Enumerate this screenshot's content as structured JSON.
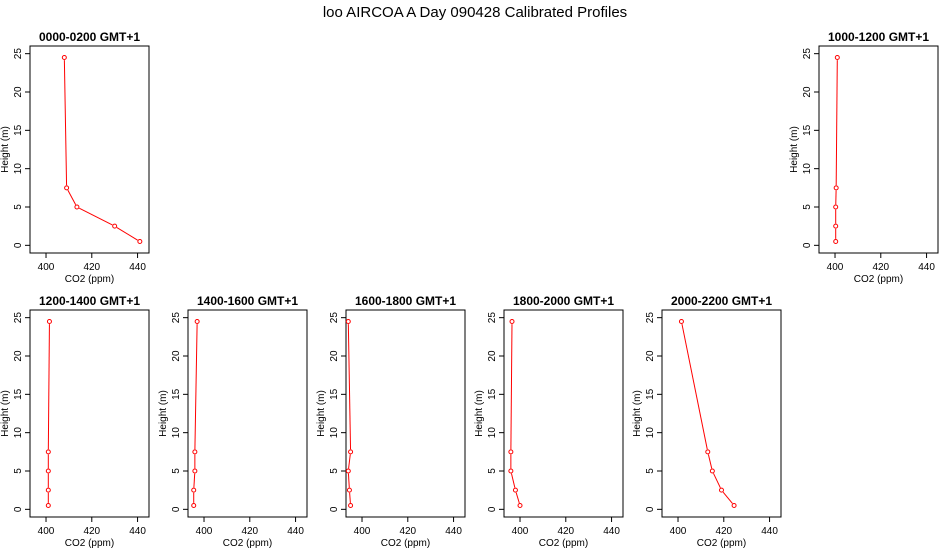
{
  "figure": {
    "title": "loo AIRCOA A  Day 090428  Calibrated Profiles"
  },
  "colors": {
    "series": "#ff0000",
    "axis": "#000000",
    "background": "#ffffff"
  },
  "chart_data": [
    {
      "type": "line",
      "title": "0000-0200 GMT+1",
      "xlabel": "CO2 (ppm)",
      "ylabel": "Height (m)",
      "xlim": [
        393,
        445
      ],
      "ylim": [
        -1,
        26
      ],
      "xticks": [
        400,
        420,
        440
      ],
      "yticks": [
        0,
        5,
        10,
        15,
        20,
        25
      ],
      "grid": false,
      "series": [
        {
          "x": [
            441,
            430,
            413.5,
            409,
            408
          ],
          "y": [
            0.5,
            2.5,
            5,
            7.5,
            24.5
          ]
        }
      ]
    },
    {
      "type": "line",
      "title": "1000-1200 GMT+1",
      "xlabel": "CO2 (ppm)",
      "ylabel": "Height (m)",
      "xlim": [
        393,
        445
      ],
      "ylim": [
        -1,
        26
      ],
      "xticks": [
        400,
        420,
        440
      ],
      "yticks": [
        0,
        5,
        10,
        15,
        20,
        25
      ],
      "grid": false,
      "series": [
        {
          "x": [
            400.3,
            400.3,
            400.3,
            400.5,
            401
          ],
          "y": [
            0.5,
            2.5,
            5,
            7.5,
            24.5
          ]
        }
      ]
    },
    {
      "type": "line",
      "title": "1200-1400 GMT+1",
      "xlabel": "CO2 (ppm)",
      "ylabel": "Height (m)",
      "xlim": [
        393,
        445
      ],
      "ylim": [
        -1,
        26
      ],
      "xticks": [
        400,
        420,
        440
      ],
      "yticks": [
        0,
        5,
        10,
        15,
        20,
        25
      ],
      "grid": false,
      "series": [
        {
          "x": [
            401,
            401,
            401,
            401,
            401.5
          ],
          "y": [
            0.5,
            2.5,
            5,
            7.5,
            24.5
          ]
        }
      ]
    },
    {
      "type": "line",
      "title": "1400-1600 GMT+1",
      "xlabel": "CO2 (ppm)",
      "ylabel": "Height (m)",
      "xlim": [
        393,
        445
      ],
      "ylim": [
        -1,
        26
      ],
      "xticks": [
        400,
        420,
        440
      ],
      "yticks": [
        0,
        5,
        10,
        15,
        20,
        25
      ],
      "grid": false,
      "series": [
        {
          "x": [
            395.5,
            395.5,
            396,
            396,
            397
          ],
          "y": [
            0.5,
            2.5,
            5,
            7.5,
            24.5
          ]
        }
      ]
    },
    {
      "type": "line",
      "title": "1600-1800 GMT+1",
      "xlabel": "CO2 (ppm)",
      "ylabel": "Height (m)",
      "xlim": [
        393,
        445
      ],
      "ylim": [
        -1,
        26
      ],
      "xticks": [
        400,
        420,
        440
      ],
      "yticks": [
        0,
        5,
        10,
        15,
        20,
        25
      ],
      "grid": false,
      "series": [
        {
          "x": [
            395,
            394.5,
            394,
            395,
            394
          ],
          "y": [
            0.5,
            2.5,
            5,
            7.5,
            24.5
          ]
        }
      ]
    },
    {
      "type": "line",
      "title": "1800-2000 GMT+1",
      "xlabel": "CO2 (ppm)",
      "ylabel": "Height (m)",
      "xlim": [
        393,
        445
      ],
      "ylim": [
        -1,
        26
      ],
      "xticks": [
        400,
        420,
        440
      ],
      "yticks": [
        0,
        5,
        10,
        15,
        20,
        25
      ],
      "grid": false,
      "series": [
        {
          "x": [
            400,
            398,
            396,
            396,
            396.5
          ],
          "y": [
            0.5,
            2.5,
            5,
            7.5,
            24.5
          ]
        }
      ]
    },
    {
      "type": "line",
      "title": "2000-2200 GMT+1",
      "xlabel": "CO2 (ppm)",
      "ylabel": "Height (m)",
      "xlim": [
        393,
        445
      ],
      "ylim": [
        -1,
        26
      ],
      "xticks": [
        400,
        420,
        440
      ],
      "yticks": [
        0,
        5,
        10,
        15,
        20,
        25
      ],
      "grid": false,
      "series": [
        {
          "x": [
            424.5,
            419,
            415,
            413,
            401.5
          ],
          "y": [
            0.5,
            2.5,
            5,
            7.5,
            24.5
          ]
        }
      ]
    }
  ]
}
